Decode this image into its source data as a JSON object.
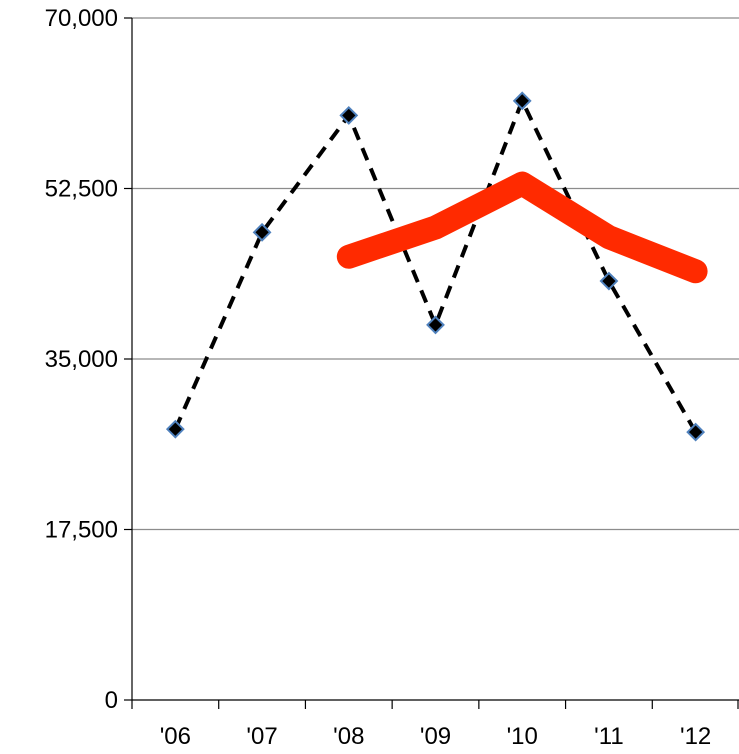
{
  "chart_data": {
    "type": "line",
    "title": "",
    "xlabel": "",
    "ylabel": "",
    "categories": [
      "'06",
      "'07",
      "'08",
      "'09",
      "'10",
      "'11",
      "'12"
    ],
    "ylim": [
      0,
      70000
    ],
    "yticks": [
      0,
      17500,
      35000,
      52500,
      70000
    ],
    "ytick_labels": [
      "0",
      "17,500",
      "35,000",
      "52,500",
      "70,000"
    ],
    "grid": "horizontal",
    "legend": "none",
    "series": [
      {
        "values": [
          27800,
          48000,
          60000,
          38500,
          61500,
          43000,
          27500
        ],
        "style": "dashed",
        "color": "#000000",
        "marker": "diamond",
        "marker_fill": "#000000",
        "marker_edge": "#4f81bd"
      },
      {
        "values": [
          null,
          null,
          45500,
          48500,
          53000,
          47500,
          44000
        ],
        "style": "solid-thick",
        "color": "#ff2a00"
      }
    ]
  }
}
